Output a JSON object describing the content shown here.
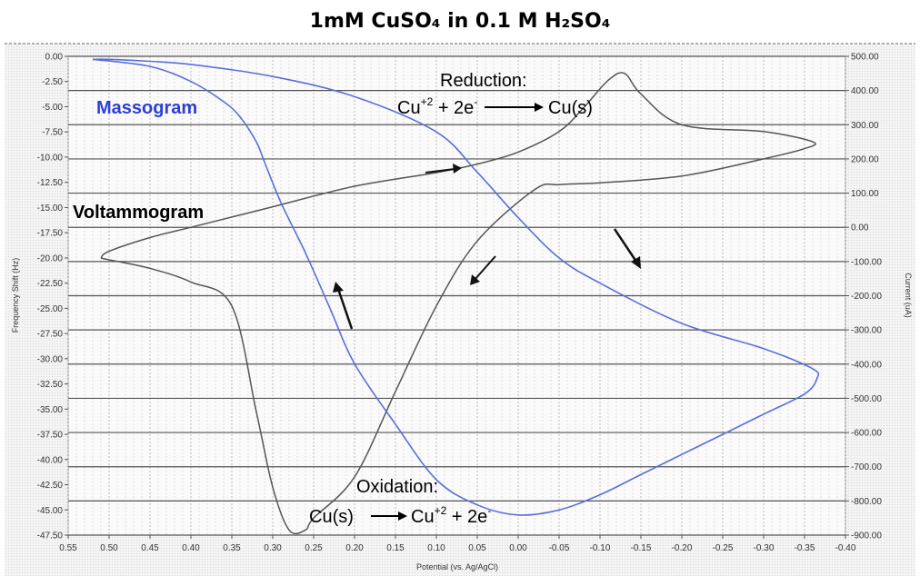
{
  "chart_data": {
    "type": "line",
    "title": "1mM CuSO₄ in 0.1 M H₂SO₄",
    "xlabel": "Potential (vs. Ag/AgCl)",
    "ylabel_left": "Frequency Shift (Hz)",
    "ylabel_right": "Current (uA)",
    "xlim": [
      0.55,
      -0.4
    ],
    "ylim_left": [
      -47.5,
      0
    ],
    "ylim_right": [
      -900,
      500
    ],
    "x_ticks": [
      "0.55",
      "0.50",
      "0.45",
      "0.40",
      "0.35",
      "0.30",
      "0.25",
      "0.20",
      "0.15",
      "0.10",
      "0.05",
      "0.00",
      "-0.05",
      "-0.10",
      "-0.15",
      "-0.20",
      "-0.25",
      "-0.30",
      "-0.35",
      "-0.40"
    ],
    "y_left_ticks": [
      "0.00",
      "-2.50",
      "-5.00",
      "-7.50",
      "-10.00",
      "-12.50",
      "-15.00",
      "-17.50",
      "-20.00",
      "-22.50",
      "-25.00",
      "-27.50",
      "-30.00",
      "-32.50",
      "-35.00",
      "-37.50",
      "-40.00",
      "-42.50",
      "-45.00",
      "-47.50"
    ],
    "y_right_ticks": [
      "500.00",
      "400.00",
      "300.00",
      "200.00",
      "100.00",
      "0.00",
      "-100.00",
      "-200.00",
      "-300.00",
      "-400.00",
      "-500.00",
      "-600.00",
      "-700.00",
      "-800.00",
      "-900.00"
    ],
    "grid": true,
    "series": [
      {
        "name": "Massogram",
        "axis": "left",
        "color": "#5a6fd8",
        "x": [
          0.52,
          0.45,
          0.4,
          0.36,
          0.34,
          0.32,
          0.31,
          0.29,
          0.26,
          0.23,
          0.2,
          0.15,
          0.1,
          0.05,
          0.0,
          -0.05,
          -0.1,
          -0.15,
          -0.2,
          -0.25,
          -0.3,
          -0.35,
          -0.365,
          -0.36,
          -0.3,
          -0.2,
          -0.1,
          -0.05,
          0.0,
          0.05,
          0.1,
          0.2,
          0.3,
          0.4,
          0.45,
          0.5,
          0.52
        ],
        "y": [
          -0.3,
          -1.0,
          -2.5,
          -4.5,
          -6.0,
          -8.5,
          -10.5,
          -14.5,
          -19.5,
          -25.0,
          -30.5,
          -36.5,
          -42.0,
          -44.5,
          -45.5,
          -45.0,
          -43.5,
          -41.5,
          -39.5,
          -37.5,
          -35.5,
          -33.5,
          -32.0,
          -31.0,
          -29.0,
          -26.5,
          -22.5,
          -20.0,
          -16.0,
          -11.5,
          -7.5,
          -4.0,
          -2.0,
          -0.8,
          -0.5,
          -0.3,
          -0.3
        ]
      },
      {
        "name": "Voltammogram",
        "axis": "right",
        "color": "#555555",
        "x": [
          0.51,
          0.5,
          0.45,
          0.4,
          0.35,
          0.3,
          0.2,
          0.1,
          0.05,
          0.0,
          -0.05,
          -0.08,
          -0.11,
          -0.13,
          -0.15,
          -0.2,
          -0.3,
          -0.36,
          -0.35,
          -0.3,
          -0.2,
          -0.1,
          -0.05,
          -0.02,
          0.05,
          0.1,
          0.15,
          0.2,
          0.25,
          0.26,
          0.28,
          0.3,
          0.32,
          0.35,
          0.4,
          0.45,
          0.5,
          0.51
        ],
        "y": [
          -90,
          -70,
          -30,
          0,
          30,
          60,
          120,
          160,
          185,
          220,
          280,
          350,
          430,
          450,
          390,
          300,
          280,
          250,
          230,
          200,
          150,
          130,
          125,
          110,
          -40,
          -230,
          -480,
          -730,
          -850,
          -885,
          -885,
          -760,
          -540,
          -230,
          -160,
          -120,
          -95,
          -90
        ]
      }
    ],
    "annotations": {
      "massogram_label": "Massogram",
      "voltammogram_label": "Voltammogram",
      "reduction_title": "Reduction:",
      "reduction_eq": {
        "a": "Cu",
        "sup": "+2",
        "b": " + 2e",
        "sup2": "-",
        "c": "Cu(s)"
      },
      "oxidation_title": "Oxidation:",
      "oxidation_eq": {
        "a": "Cu(s)",
        "b": "Cu",
        "sup": "+2",
        "c": " + 2e",
        "sup2": "-"
      }
    }
  }
}
